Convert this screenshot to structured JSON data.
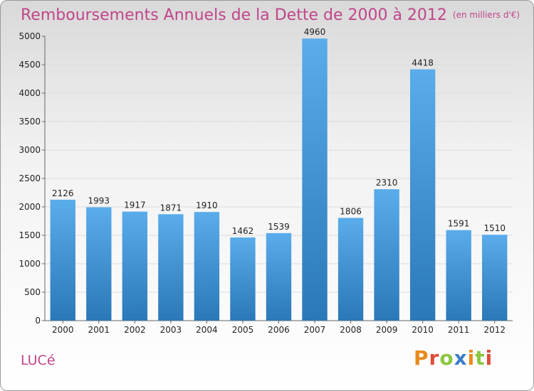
{
  "header": {
    "title": "Remboursements Annuels de la Dette de 2000 à 2012",
    "unit": "(en milliers d'€)"
  },
  "footer": {
    "town": "LUCé",
    "logo": "Proxiti"
  },
  "colors": {
    "title": "#c0458a",
    "bar_top": "#5aaceb",
    "bar_bottom": "#2a78b8",
    "logo_letters": [
      "#e98a1e",
      "#e04a3a",
      "#8cc63f",
      "#3a7ec7",
      "#e98a1e",
      "#8cc63f",
      "#e04a3a"
    ]
  },
  "chart_data": {
    "type": "bar",
    "categories": [
      "2000",
      "2001",
      "2002",
      "2003",
      "2004",
      "2005",
      "2006",
      "2007",
      "2008",
      "2009",
      "2010",
      "2011",
      "2012"
    ],
    "values": [
      2126,
      1993,
      1917,
      1871,
      1910,
      1462,
      1539,
      4960,
      1806,
      2310,
      4418,
      1591,
      1510
    ],
    "yticks": [
      0,
      500,
      1000,
      1500,
      2000,
      2500,
      3000,
      3500,
      4000,
      4500,
      5000
    ],
    "ylim": [
      0,
      5000
    ],
    "grid": true,
    "legend": "none"
  }
}
